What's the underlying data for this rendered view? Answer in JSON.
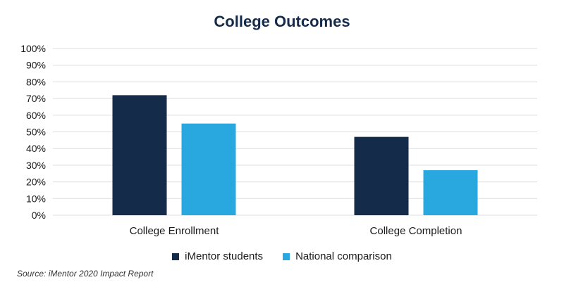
{
  "chart_data": {
    "type": "bar",
    "title": "College Outcomes",
    "categories": [
      "College Enrollment",
      "College Completion"
    ],
    "series": [
      {
        "name": "iMentor students",
        "values": [
          72,
          47
        ],
        "color": "#152b4a"
      },
      {
        "name": "National comparison",
        "values": [
          55,
          27
        ],
        "color": "#29a8e0"
      }
    ],
    "ylim": [
      0,
      100
    ],
    "yticks": [
      "0%",
      "10%",
      "20%",
      "30%",
      "40%",
      "50%",
      "60%",
      "70%",
      "80%",
      "90%",
      "100%"
    ],
    "xlabel": "",
    "ylabel": "",
    "grid": true,
    "legend": "bottom-center"
  },
  "source": "Source: iMentor 2020 Impact Report"
}
